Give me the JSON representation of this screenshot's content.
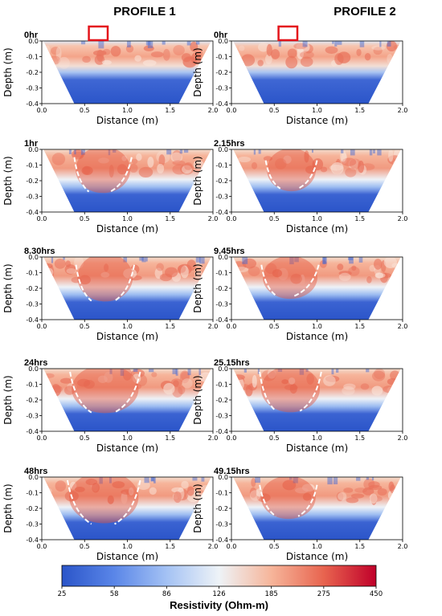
{
  "columns": [
    "PROFILE 1",
    "PROFILE 2"
  ],
  "chart_data": {
    "type": "heatmap",
    "xlabel": "Distance (m)",
    "ylabel": "Depth (m)",
    "xlim": [
      0.0,
      2.0
    ],
    "ylim": [
      -0.4,
      0.0
    ],
    "xticks": [
      "0.0",
      "0.5",
      "1.0",
      "1.5",
      "2.0"
    ],
    "yticks": [
      "0.0",
      "-0.1",
      "-0.2",
      "-0.3",
      "-0.4"
    ],
    "colorbar": {
      "title": "Resistivity (Ohm-m)",
      "ticks": [
        "25",
        "58",
        "86",
        "126",
        "185",
        "275",
        "450"
      ],
      "colors": [
        "#2b55c9",
        "#5a86e8",
        "#a4c2f4",
        "#eef3f7",
        "#f6b59a",
        "#e8644f",
        "#c0002a"
      ]
    },
    "source_marker_x": [
      0.55,
      0.77
    ],
    "panels": [
      {
        "profile": "PROFILE 1",
        "label": "0hr",
        "plume": null
      },
      {
        "profile": "PROFILE 2",
        "label": "0hr",
        "plume": null
      },
      {
        "profile": "PROFILE 1",
        "label": "1hr",
        "plume": {
          "left_x": [
            0.38,
            0.55
          ],
          "right_x": [
            1.05,
            0.8
          ],
          "depth": [
            -0.05,
            -0.27
          ]
        }
      },
      {
        "profile": "PROFILE 2",
        "label": "2.15hrs",
        "plume": {
          "left_x": [
            0.4,
            0.57
          ],
          "right_x": [
            1.0,
            0.78
          ],
          "depth": [
            -0.07,
            -0.25
          ]
        }
      },
      {
        "profile": "PROFILE 1",
        "label": "8.30hrs",
        "plume": {
          "left_x": [
            0.4,
            0.58
          ],
          "right_x": [
            1.08,
            0.85
          ],
          "depth": [
            -0.05,
            -0.28
          ]
        }
      },
      {
        "profile": "PROFILE 2",
        "label": "9.45hrs",
        "plume": {
          "left_x": [
            0.35,
            0.53
          ],
          "right_x": [
            1.02,
            0.73
          ],
          "depth": [
            -0.05,
            -0.25
          ]
        }
      },
      {
        "profile": "PROFILE 1",
        "label": "24hrs",
        "plume": {
          "left_x": [
            0.33,
            0.58
          ],
          "right_x": [
            1.15,
            0.85
          ],
          "depth": [
            -0.02,
            -0.28
          ]
        }
      },
      {
        "profile": "PROFILE 2",
        "label": "25.15hrs",
        "plume": {
          "left_x": [
            0.33,
            0.52
          ],
          "right_x": [
            1.05,
            0.8
          ],
          "depth": [
            -0.02,
            -0.27
          ]
        }
      },
      {
        "profile": "PROFILE 1",
        "label": "48hrs",
        "plume": {
          "left_x": [
            0.3,
            0.58
          ],
          "right_x": [
            1.15,
            0.85
          ],
          "depth": [
            -0.02,
            -0.3
          ]
        }
      },
      {
        "profile": "PROFILE 2",
        "label": "49.15hrs",
        "plume": {
          "left_x": [
            0.33,
            0.52
          ],
          "right_x": [
            1.0,
            0.78
          ],
          "depth": [
            -0.05,
            -0.25
          ]
        }
      }
    ]
  }
}
